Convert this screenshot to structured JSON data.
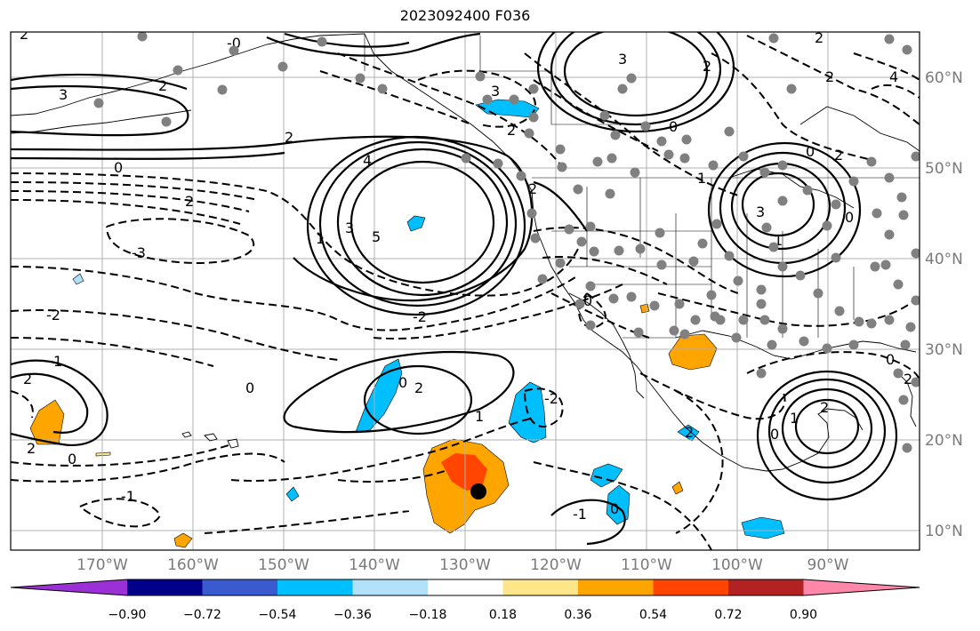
{
  "title": "2023092400 F036",
  "map": {
    "lon_labels": [
      "170°W",
      "160°W",
      "150°W",
      "140°W",
      "130°W",
      "120°W",
      "110°W",
      "100°W",
      "90°W"
    ],
    "lat_labels": [
      "60°N",
      "50°N",
      "40°N",
      "30°N",
      "20°N",
      "10°N"
    ],
    "contour_labels": [
      "2",
      "-0",
      "3",
      "2",
      "3",
      "2",
      "0",
      "2",
      "3",
      "4",
      "5",
      "1",
      "3",
      "2",
      "0",
      "2",
      "2",
      "3",
      "1",
      "0",
      "2",
      "2",
      "-3",
      "0",
      "-2",
      "-2",
      "1",
      "2",
      "0",
      "0",
      "2",
      "1",
      "-2",
      "2",
      "0",
      "-1",
      "2",
      "1",
      "0",
      "0",
      "-1",
      "2",
      "2",
      "1",
      "0",
      "2",
      "0",
      "4"
    ],
    "point_marker_color": "#808080",
    "center_marker_color": "#000000"
  },
  "colorbar": {
    "ticks": [
      "−0.90",
      "−0.72",
      "−0.54",
      "−0.36",
      "−0.18",
      "0.18",
      "0.36",
      "0.54",
      "0.72",
      "0.90"
    ],
    "colors": [
      "#9b30d6",
      "#00008b",
      "#3a5bd0",
      "#00bfff",
      "#b0e0fa",
      "#ffffff",
      "#fde68a",
      "#ffa500",
      "#ff4500",
      "#b22222",
      "#ff88aa"
    ]
  }
}
